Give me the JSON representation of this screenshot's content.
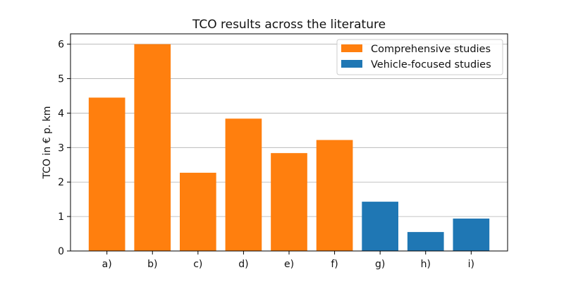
{
  "chart_data": {
    "type": "bar",
    "title": "TCO results across the literature",
    "xlabel": "",
    "ylabel": "TCO in € p. km",
    "categories": [
      "a)",
      "b)",
      "c)",
      "d)",
      "e)",
      "f)",
      "g)",
      "h)",
      "i)"
    ],
    "values": [
      4.45,
      6.0,
      2.27,
      3.84,
      2.84,
      3.22,
      1.43,
      0.55,
      0.94
    ],
    "bar_groups": [
      "Comprehensive studies",
      "Comprehensive studies",
      "Comprehensive studies",
      "Comprehensive studies",
      "Comprehensive studies",
      "Comprehensive studies",
      "Vehicle-focused studies",
      "Vehicle-focused studies",
      "Vehicle-focused studies"
    ],
    "ylim": [
      0,
      6.3
    ],
    "yticks": [
      0,
      1,
      2,
      3,
      4,
      5,
      6
    ],
    "grid": "horizontal",
    "legend_position": "top-right",
    "legend": [
      {
        "label": "Comprehensive studies",
        "color": "#ff7f0e"
      },
      {
        "label": "Vehicle-focused studies",
        "color": "#1f77b4"
      }
    ]
  }
}
